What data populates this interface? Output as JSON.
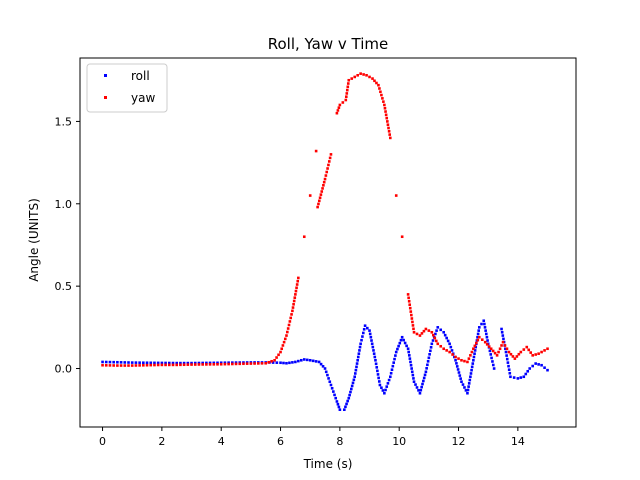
{
  "chart_data": {
    "type": "scatter",
    "title": "Roll, Yaw v Time",
    "xlabel": "Time (s)",
    "ylabel": "Angle (UNITS)",
    "xlim": [
      -0.76,
      15.96
    ],
    "ylim": [
      -0.355,
      1.885
    ],
    "xticks": [
      0,
      2,
      4,
      6,
      8,
      10,
      12,
      14
    ],
    "yticks": [
      0.0,
      0.5,
      1.0,
      1.5
    ],
    "legend_position": "top-left",
    "grid": false,
    "series": [
      {
        "name": "roll",
        "color": "#0000ff",
        "points": [
          [
            0.0,
            0.04
          ],
          [
            0.5,
            0.038
          ],
          [
            1.0,
            0.036
          ],
          [
            1.5,
            0.035
          ],
          [
            2.0,
            0.034
          ],
          [
            2.5,
            0.033
          ],
          [
            3.0,
            0.033
          ],
          [
            3.5,
            0.034
          ],
          [
            4.0,
            0.035
          ],
          [
            4.5,
            0.036
          ],
          [
            5.0,
            0.037
          ],
          [
            5.5,
            0.037
          ],
          [
            6.0,
            0.035
          ],
          [
            6.2,
            0.032
          ],
          [
            6.5,
            0.04
          ],
          [
            6.8,
            0.055
          ],
          [
            7.0,
            0.05
          ],
          [
            7.3,
            0.04
          ],
          [
            7.5,
            0.0
          ],
          [
            7.7,
            -0.1
          ],
          [
            7.9,
            -0.2
          ],
          [
            8.0,
            -0.25
          ],
          [
            8.15,
            -0.25
          ],
          [
            8.3,
            -0.18
          ],
          [
            8.5,
            -0.05
          ],
          [
            8.7,
            0.15
          ],
          [
            8.85,
            0.26
          ],
          [
            9.0,
            0.23
          ],
          [
            9.2,
            0.05
          ],
          [
            9.35,
            -0.1
          ],
          [
            9.5,
            -0.15
          ],
          [
            9.7,
            -0.05
          ],
          [
            9.9,
            0.1
          ],
          [
            10.1,
            0.19
          ],
          [
            10.3,
            0.12
          ],
          [
            10.5,
            -0.08
          ],
          [
            10.7,
            -0.15
          ],
          [
            10.9,
            -0.02
          ],
          [
            11.1,
            0.15
          ],
          [
            11.3,
            0.25
          ],
          [
            11.5,
            0.22
          ],
          [
            11.7,
            0.15
          ],
          [
            11.9,
            0.05
          ],
          [
            12.1,
            -0.08
          ],
          [
            12.3,
            -0.15
          ],
          [
            12.5,
            0.05
          ],
          [
            12.7,
            0.25
          ],
          [
            12.85,
            0.29
          ],
          [
            13.0,
            0.15
          ],
          [
            13.2,
            0.0
          ],
          [
            13.45,
            0.24
          ],
          [
            13.6,
            0.1
          ],
          [
            13.75,
            -0.05
          ],
          [
            14.0,
            -0.06
          ],
          [
            14.2,
            -0.05
          ],
          [
            14.4,
            0.0
          ],
          [
            14.6,
            0.03
          ],
          [
            14.8,
            0.02
          ],
          [
            15.0,
            -0.01
          ]
        ]
      },
      {
        "name": "yaw",
        "color": "#ff0000",
        "points": [
          [
            0.0,
            0.02
          ],
          [
            0.5,
            0.018
          ],
          [
            1.0,
            0.018
          ],
          [
            1.5,
            0.02
          ],
          [
            2.0,
            0.022
          ],
          [
            2.5,
            0.022
          ],
          [
            3.0,
            0.024
          ],
          [
            3.5,
            0.025
          ],
          [
            4.0,
            0.026
          ],
          [
            4.5,
            0.028
          ],
          [
            5.0,
            0.03
          ],
          [
            5.5,
            0.032
          ],
          [
            5.8,
            0.05
          ],
          [
            6.0,
            0.1
          ],
          [
            6.2,
            0.2
          ],
          [
            6.4,
            0.35
          ],
          [
            6.6,
            0.55
          ],
          [
            6.8,
            0.8
          ],
          [
            7.0,
            1.05
          ],
          [
            7.2,
            1.32
          ],
          [
            7.25,
            0.98
          ],
          [
            7.5,
            1.15
          ],
          [
            7.7,
            1.3
          ],
          [
            7.9,
            1.55
          ],
          [
            8.0,
            1.6
          ],
          [
            8.2,
            1.63
          ],
          [
            8.3,
            1.75
          ],
          [
            8.5,
            1.77
          ],
          [
            8.7,
            1.79
          ],
          [
            8.9,
            1.78
          ],
          [
            9.1,
            1.76
          ],
          [
            9.3,
            1.72
          ],
          [
            9.5,
            1.6
          ],
          [
            9.7,
            1.4
          ],
          [
            9.9,
            1.05
          ],
          [
            10.1,
            0.8
          ],
          [
            10.3,
            0.45
          ],
          [
            10.5,
            0.22
          ],
          [
            10.7,
            0.2
          ],
          [
            10.9,
            0.24
          ],
          [
            11.1,
            0.22
          ],
          [
            11.3,
            0.15
          ],
          [
            11.5,
            0.12
          ],
          [
            11.7,
            0.1
          ],
          [
            11.9,
            0.07
          ],
          [
            12.1,
            0.05
          ],
          [
            12.3,
            0.04
          ],
          [
            12.5,
            0.12
          ],
          [
            12.7,
            0.19
          ],
          [
            12.9,
            0.16
          ],
          [
            13.1,
            0.12
          ],
          [
            13.3,
            0.08
          ],
          [
            13.5,
            0.16
          ],
          [
            13.7,
            0.1
          ],
          [
            13.9,
            0.06
          ],
          [
            14.1,
            0.1
          ],
          [
            14.3,
            0.13
          ],
          [
            14.5,
            0.08
          ],
          [
            14.7,
            0.09
          ],
          [
            15.0,
            0.12
          ]
        ]
      }
    ]
  }
}
